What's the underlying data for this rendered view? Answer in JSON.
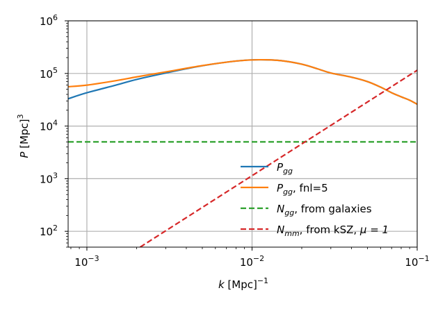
{
  "chart_data": {
    "type": "line",
    "xscale": "log",
    "yscale": "log",
    "xlim": [
      0.00077,
      0.1
    ],
    "ylim": [
      50,
      1000000
    ],
    "grid": true,
    "legend_position": "lower-right",
    "xlabel": {
      "base": "k",
      "unit": " [Mpc]",
      "exp": "−1"
    },
    "ylabel": {
      "base": "P",
      "unit": " [Mpc]",
      "exp": "3"
    },
    "xticks": [
      {
        "value": 0.001,
        "base": "10",
        "exp": "−3"
      },
      {
        "value": 0.01,
        "base": "10",
        "exp": "−2"
      },
      {
        "value": 0.1,
        "base": "10",
        "exp": "−1"
      }
    ],
    "yticks": [
      {
        "value": 100,
        "base": "10",
        "exp": "2"
      },
      {
        "value": 1000,
        "base": "10",
        "exp": "3"
      },
      {
        "value": 10000,
        "base": "10",
        "exp": "4"
      },
      {
        "value": 100000,
        "base": "10",
        "exp": "5"
      },
      {
        "value": 1000000,
        "base": "10",
        "exp": "6"
      }
    ],
    "series": [
      {
        "id": "pgg",
        "color": "#1f77b4",
        "dash": "solid",
        "legend": {
          "main": "P",
          "sub": "gg",
          "rest": ""
        },
        "x": [
          0.00077,
          0.001,
          0.0015,
          0.002,
          0.003,
          0.005,
          0.008,
          0.011,
          0.015,
          0.02,
          0.025,
          0.03,
          0.04,
          0.05,
          0.06,
          0.07,
          0.08,
          0.09,
          0.1
        ],
        "y": [
          33000,
          43000,
          60000,
          77000,
          102000,
          140000,
          172000,
          182000,
          175000,
          150000,
          122000,
          102000,
          85000,
          70000,
          55000,
          43000,
          36000,
          31000,
          26000
        ]
      },
      {
        "id": "pgg-fnl",
        "color": "#ff7f0e",
        "dash": "solid",
        "legend": {
          "main": "P",
          "sub": "gg",
          "rest": ", fnl=5"
        },
        "x": [
          0.00077,
          0.001,
          0.0015,
          0.002,
          0.003,
          0.005,
          0.008,
          0.011,
          0.015,
          0.02,
          0.025,
          0.03,
          0.04,
          0.05,
          0.06,
          0.07,
          0.08,
          0.09,
          0.1
        ],
        "y": [
          56000,
          60000,
          73000,
          86000,
          107000,
          141000,
          172000,
          182000,
          175000,
          150000,
          122000,
          102000,
          85000,
          70000,
          55000,
          43000,
          36000,
          31000,
          26000
        ]
      },
      {
        "id": "ngg",
        "color": "#2ca02c",
        "dash": "dashed",
        "legend": {
          "main": "N",
          "sub": "gg",
          "rest": ", from galaxies"
        },
        "x": [
          0.00077,
          0.1
        ],
        "y": [
          5000,
          5000
        ]
      },
      {
        "id": "nmm",
        "color": "#d62728",
        "dash": "dashed",
        "legend": {
          "main": "N",
          "sub": "mm",
          "rest": ", from kSZ, ",
          "mu": "μ = 1"
        },
        "x": [
          0.0021,
          0.1
        ],
        "y": [
          50,
          115000
        ]
      }
    ]
  }
}
